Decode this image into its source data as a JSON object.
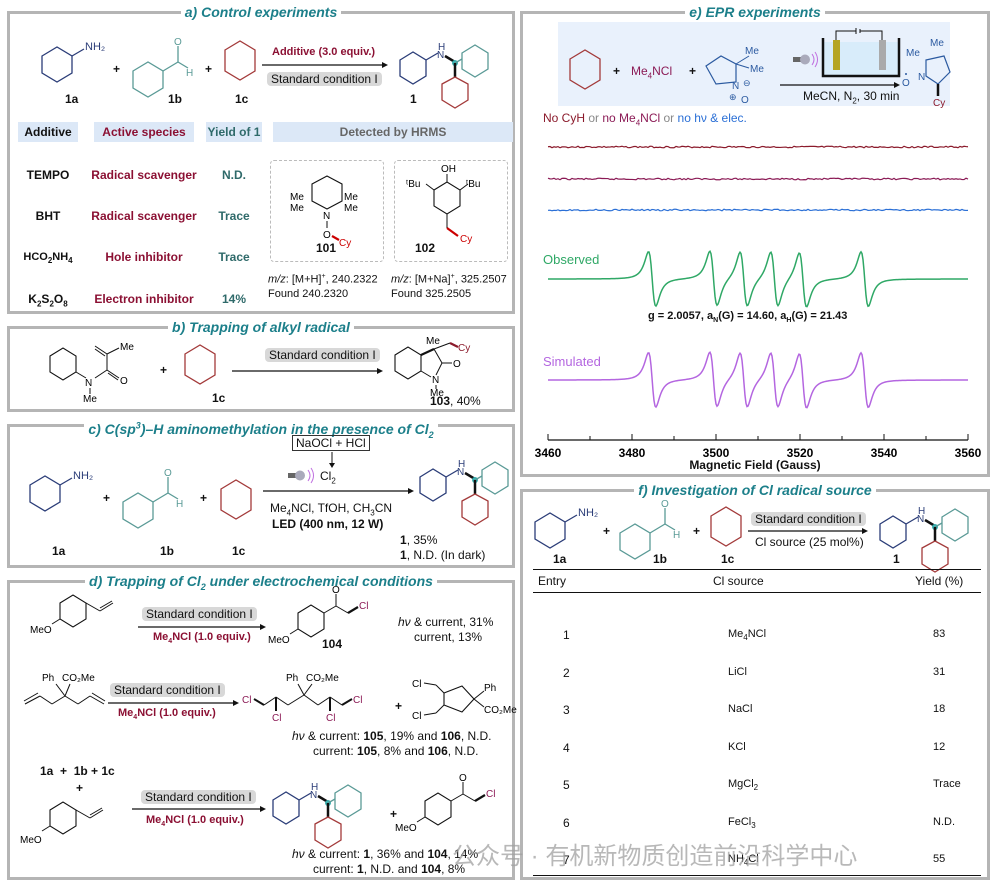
{
  "panels": {
    "a": {
      "title": "a) Control experiments",
      "reactants": [
        "1a",
        "1b",
        "1c"
      ],
      "product": "1",
      "arrow_top": "Additive (3.0 equiv.)",
      "arrow_bottom": "Standard condition I",
      "headers": [
        "Additive",
        "Active species",
        "Yield of 1",
        "Detected by HRMS"
      ],
      "rows": [
        {
          "additive": "TEMPO",
          "species": "Radical scavenger",
          "yield": "N.D."
        },
        {
          "additive": "BHT",
          "species": "Radical scavenger",
          "yield": "Trace"
        },
        {
          "additive": "HCO2NH4",
          "species": "Hole inhibitor",
          "yield": "Trace"
        },
        {
          "additive": "K2S2O8",
          "species": "Electron  inhibitor",
          "yield": "14%"
        }
      ],
      "adducts": [
        {
          "id": "101",
          "mz": "m/z: [M+H]+, 240.2322",
          "found": "Found 240.2320"
        },
        {
          "id": "102",
          "mz": "m/z: [M+Na]+, 325.2507",
          "found": "Found 325.2505"
        }
      ]
    },
    "b": {
      "title": "b) Trapping of alkyl radical",
      "reactant_label": "1c",
      "arrow_top": "Standard condition I",
      "product": "103, 40%"
    },
    "c": {
      "title": "c) C(sp3)–H aminomethylation  in the presence of Cl2",
      "reactants": [
        "1a",
        "1b",
        "1c"
      ],
      "box": "NaOCl + HCl",
      "cl2": "Cl2",
      "reagents": "Me4NCl, TfOH, CH3CN",
      "led": "LED (400 nm, 12 W)",
      "results": [
        "1, 35%",
        "1, N.D. (In dark)"
      ]
    },
    "d": {
      "title": "d) Trapping of Cl2 under electrochemical conditions",
      "rxn1": {
        "top": "Standard condition I",
        "bottom": "Me4NCl (1.0 equiv.)",
        "product": "104",
        "results": [
          "hν & current, 31%",
          "current, 13%"
        ]
      },
      "rxn2": {
        "top": "Standard condition I",
        "bottom": "Me4NCl (1.0 equiv.)",
        "results": [
          "hν & current: 105, 19% and 106, N.D.",
          "current: 105, 8% and 106, N.D."
        ]
      },
      "rxn3": {
        "reactants": "1a  +  1b + 1c",
        "top": "Standard condition I",
        "bottom": "Me4NCl (1.0 equiv.)",
        "results": [
          "hν & current: 1, 36% and 104, 14%",
          "current: 1, N.D. and 104, 8%"
        ]
      }
    },
    "e": {
      "title": "e) EPR experiments",
      "scheme": {
        "reagent": "Me4NCl",
        "conditions": "MeCN, N2, 30 min"
      },
      "legend": [
        {
          "text": "No CyH",
          "color": "#8b1a2b"
        },
        {
          "text": " or ",
          "color": "#888888"
        },
        {
          "text": "no Me4NCl",
          "color": "#8b1a55"
        },
        {
          "text": " or ",
          "color": "#888888"
        },
        {
          "text": "no hν & elec.",
          "color": "#2a6fd6"
        }
      ],
      "params": "g = 2.0057, aN(G) = 14.60, aH(G) = 21.43"
    },
    "f": {
      "title": "f) Investigation of Cl radical source",
      "reactants": [
        "1a",
        "1b",
        "1c"
      ],
      "product": "1",
      "arrow_top": "Standard condition I",
      "arrow_bottom": "Cl source (25 mol%)",
      "columns": [
        "Entry",
        "Cl source",
        "Yield (%)"
      ],
      "rows": [
        {
          "entry": "1",
          "source": "Me4NCl",
          "yield": "83"
        },
        {
          "entry": "2",
          "source": "LiCl",
          "yield": "31"
        },
        {
          "entry": "3",
          "source": "NaCl",
          "yield": "18"
        },
        {
          "entry": "4",
          "source": "KCl",
          "yield": "12"
        },
        {
          "entry": "5",
          "source": "MgCl2",
          "yield": "Trace"
        },
        {
          "entry": "6",
          "source": "FeCl3",
          "yield": "N.D."
        },
        {
          "entry": "7",
          "source": "NH4Cl",
          "yield": "55"
        }
      ]
    }
  },
  "chart_data": {
    "type": "line",
    "title": "EPR experiments",
    "xlabel": "Magnetic Field (Gauss)",
    "ylabel": "",
    "xlim": [
      3460,
      3560
    ],
    "xticks": [
      3460,
      3480,
      3500,
      3520,
      3540,
      3560
    ],
    "grid": false,
    "series": [
      {
        "name": "No CyH",
        "color": "#8b1a2b",
        "kind": "flat"
      },
      {
        "name": "no Me4NCl",
        "color": "#8b1a55",
        "kind": "flat"
      },
      {
        "name": "no hν & elec.",
        "color": "#2a6fd6",
        "kind": "flat"
      },
      {
        "name": "Observed",
        "color": "#2fa866",
        "kind": "spectrum",
        "lines_center_G": [
          3484.8,
          3499.4,
          3506.6,
          3513.9,
          3520.7,
          3535.4
        ]
      },
      {
        "name": "Simulated",
        "color": "#b466e0",
        "kind": "spectrum",
        "lines_center_G": [
          3484.8,
          3499.4,
          3506.6,
          3513.9,
          3520.7,
          3535.4
        ]
      }
    ],
    "annotation": "g = 2.0057, aN(G) = 14.60, aH(G) = 21.43"
  },
  "watermark": "公众号 · 有机新物质创造前沿科学中心"
}
